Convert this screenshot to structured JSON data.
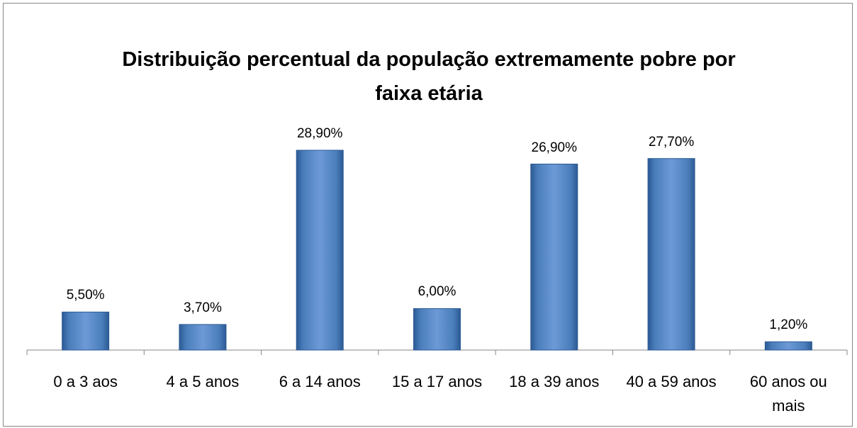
{
  "chart_data": {
    "type": "bar",
    "title": "Distribuição percentual da população extremamente pobre por faixa etária",
    "categories": [
      "0 a 3 aos",
      "4 a 5 anos",
      "6 a 14 anos",
      "15 a 17 anos",
      "18 a 39 anos",
      "40 a 59 anos",
      "60 anos ou mais"
    ],
    "values": [
      5.5,
      3.7,
      28.9,
      6.0,
      26.9,
      27.7,
      1.2
    ],
    "value_labels": [
      "5,50%",
      "3,70%",
      "28,90%",
      "6,00%",
      "26,90%",
      "27,70%",
      "1,20%"
    ],
    "color": "#4a7ebb"
  }
}
